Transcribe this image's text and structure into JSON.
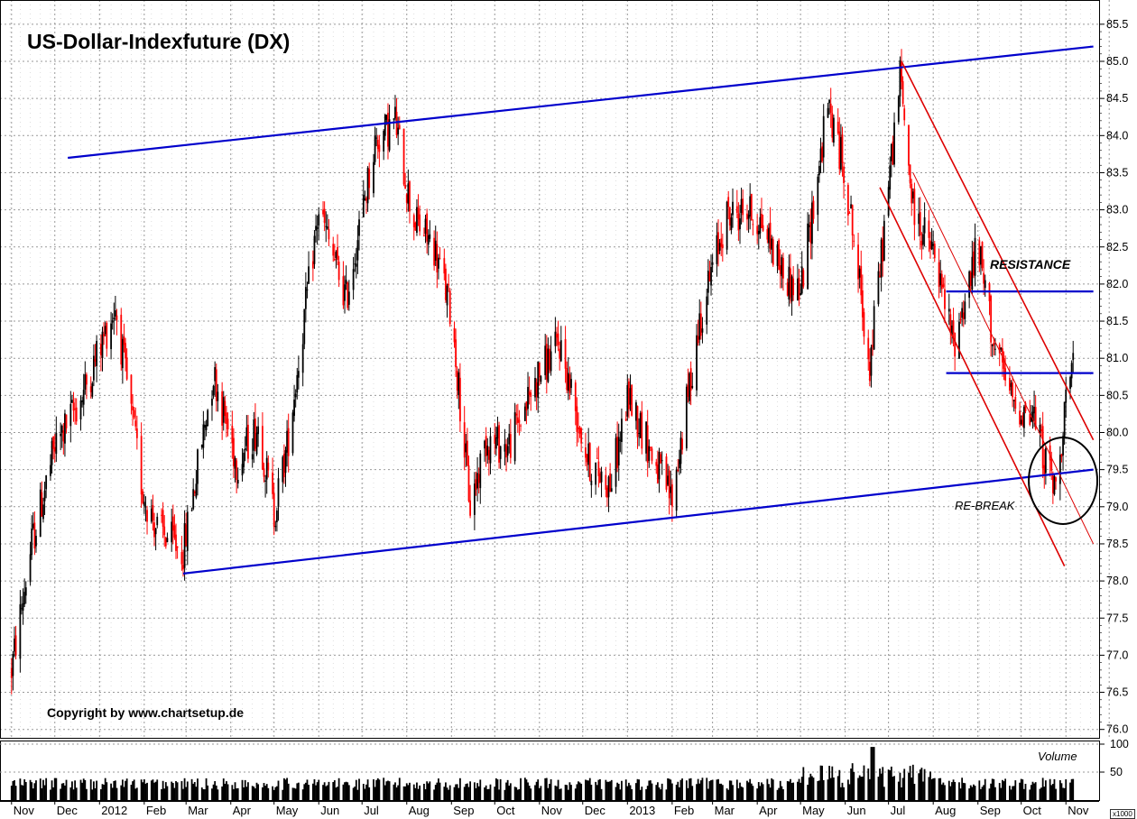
{
  "title": "US-Dollar-Indexfuture (DX)",
  "copyright": "Copyright by www.chartsetup.de",
  "colors": {
    "up": "#000000",
    "down": "#ff0000",
    "channel": "#0000cc",
    "downtrend": "#dd0000",
    "circle": "#000000",
    "grid": "#999999",
    "volume": "#000000"
  },
  "annotations": {
    "resistance": "RESISTANCE",
    "rebreak": "RE-BREAK"
  },
  "chart_data": {
    "type": "candlestick",
    "title": "US-Dollar-Indexfuture (DX)",
    "ylim": [
      75.8,
      85.8
    ],
    "yticks": [
      "85.5",
      "85.0",
      "84.5",
      "84.0",
      "83.5",
      "83.0",
      "82.5",
      "82.0",
      "81.5",
      "81.0",
      "80.5",
      "80.0",
      "79.5",
      "79.0",
      "78.5",
      "78.0",
      "77.5",
      "77.0",
      "76.5",
      "76.0"
    ],
    "x_labels": [
      "Nov",
      "Dec",
      "2012",
      "Feb",
      "Mar",
      "Apr",
      "May",
      "Jun",
      "Jul",
      "Aug",
      "Sep",
      "Oct",
      "Nov",
      "Dec",
      "2013",
      "Feb",
      "Mar",
      "Apr",
      "May",
      "Jun",
      "Jul",
      "Aug",
      "Sep",
      "Oct",
      "Nov"
    ],
    "grid": true,
    "price_path": {
      "description_points": [
        [
          "2011-11-01",
          76.8
        ],
        [
          "2011-11-15",
          78.5
        ],
        [
          "2011-12-01",
          79.8
        ],
        [
          "2011-12-20",
          80.5
        ],
        [
          "2012-01-12",
          81.7
        ],
        [
          "2012-01-31",
          79.2
        ],
        [
          "2012-02-10",
          78.7
        ],
        [
          "2012-02-28",
          78.4
        ],
        [
          "2012-03-20",
          80.8
        ],
        [
          "2012-04-05",
          79.6
        ],
        [
          "2012-04-20",
          80.1
        ],
        [
          "2012-05-01",
          78.9
        ],
        [
          "2012-05-10",
          79.8
        ],
        [
          "2012-06-01",
          83.0
        ],
        [
          "2012-06-20",
          81.8
        ],
        [
          "2012-07-10",
          83.9
        ],
        [
          "2012-07-24",
          84.2
        ],
        [
          "2012-08-05",
          82.9
        ],
        [
          "2012-08-20",
          82.5
        ],
        [
          "2012-09-01",
          81.6
        ],
        [
          "2012-09-14",
          79.0
        ],
        [
          "2012-09-25",
          79.9
        ],
        [
          "2012-10-10",
          79.8
        ],
        [
          "2012-11-01",
          80.8
        ],
        [
          "2012-11-15",
          81.2
        ],
        [
          "2012-12-05",
          79.6
        ],
        [
          "2012-12-20",
          79.3
        ],
        [
          "2013-01-02",
          80.5
        ],
        [
          "2013-01-20",
          79.6
        ],
        [
          "2013-02-01",
          79.1
        ],
        [
          "2013-02-20",
          81.5
        ],
        [
          "2013-03-10",
          82.9
        ],
        [
          "2013-03-25",
          83.0
        ],
        [
          "2013-04-05",
          82.8
        ],
        [
          "2013-04-20",
          82.1
        ],
        [
          "2013-05-01",
          81.9
        ],
        [
          "2013-05-20",
          84.4
        ],
        [
          "2013-06-01",
          83.5
        ],
        [
          "2013-06-18",
          80.9
        ],
        [
          "2013-07-09",
          84.8
        ],
        [
          "2013-07-18",
          83.0
        ],
        [
          "2013-08-01",
          82.4
        ],
        [
          "2013-08-15",
          81.2
        ],
        [
          "2013-09-01",
          82.5
        ],
        [
          "2013-09-12",
          81.2
        ],
        [
          "2013-09-25",
          80.4
        ],
        [
          "2013-10-10",
          80.2
        ],
        [
          "2013-10-18",
          79.6
        ],
        [
          "2013-10-25",
          79.2
        ],
        [
          "2013-11-01",
          80.5
        ],
        [
          "2013-11-06",
          80.8
        ]
      ]
    },
    "trendlines": [
      {
        "name": "upper channel",
        "from": [
          "2011-12-10",
          83.7
        ],
        "to": [
          "2013-11-20",
          85.2
        ]
      },
      {
        "name": "lower channel",
        "from": [
          "2012-02-28",
          78.1
        ],
        "to": [
          "2013-11-20",
          79.5
        ]
      },
      {
        "name": "resistance",
        "from": [
          "2013-08-10",
          81.9
        ],
        "to": [
          "2013-11-20",
          81.9
        ]
      },
      {
        "name": "resistance 2",
        "from": [
          "2013-08-10",
          80.8
        ],
        "to": [
          "2013-11-20",
          80.8
        ]
      },
      {
        "name": "downtrend upper",
        "from": [
          "2013-07-10",
          85.0
        ],
        "to": [
          "2013-11-20",
          79.9
        ]
      },
      {
        "name": "downtrend lower",
        "from": [
          "2013-06-25",
          83.3
        ],
        "to": [
          "2013-10-31",
          78.2
        ]
      },
      {
        "name": "downtrend mid",
        "from": [
          "2013-07-18",
          83.5
        ],
        "to": [
          "2013-11-20",
          78.5
        ]
      }
    ],
    "volume": {
      "label": "Volume",
      "unit": "x1000",
      "yticks": [
        "100",
        "50"
      ]
    }
  }
}
